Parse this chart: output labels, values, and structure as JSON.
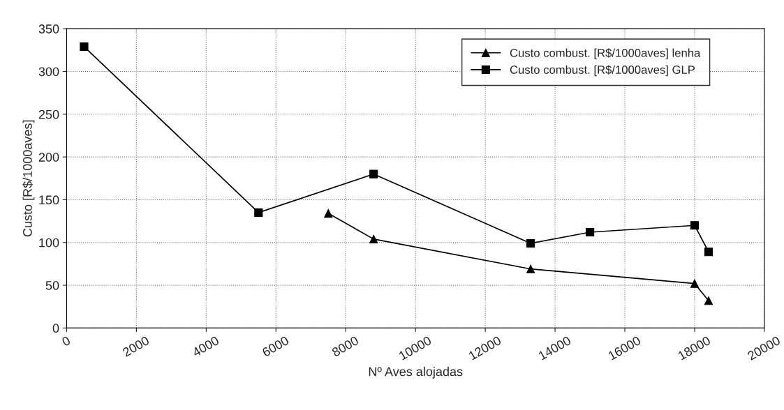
{
  "chart_data": {
    "type": "line",
    "xlabel": "Nº Aves alojadas",
    "ylabel": "Custo [R$/1000aves]",
    "xlim": [
      0,
      20000
    ],
    "xticks": [
      0,
      2000,
      4000,
      6000,
      8000,
      10000,
      12000,
      14000,
      16000,
      18000,
      20000
    ],
    "ylim": [
      0,
      350
    ],
    "yticks": [
      0,
      50,
      100,
      150,
      200,
      250,
      300,
      350
    ],
    "grid": true,
    "legend": "top right",
    "line_style": "solid",
    "series": [
      {
        "name": "Custo combust. [R$/1000aves] lenha",
        "color": "#000000",
        "marker": "triangle",
        "x": [
          7500,
          8800,
          13300,
          18000,
          18400
        ],
        "values": [
          134,
          104,
          69,
          52,
          32
        ]
      },
      {
        "name": "Custo combust. [R$/1000aves] GLP",
        "color": "#000000",
        "marker": "square",
        "x": [
          500,
          5500,
          8800,
          13300,
          15000,
          18000,
          18400
        ],
        "values": [
          329,
          135,
          180,
          99,
          112,
          120,
          89
        ]
      }
    ]
  }
}
